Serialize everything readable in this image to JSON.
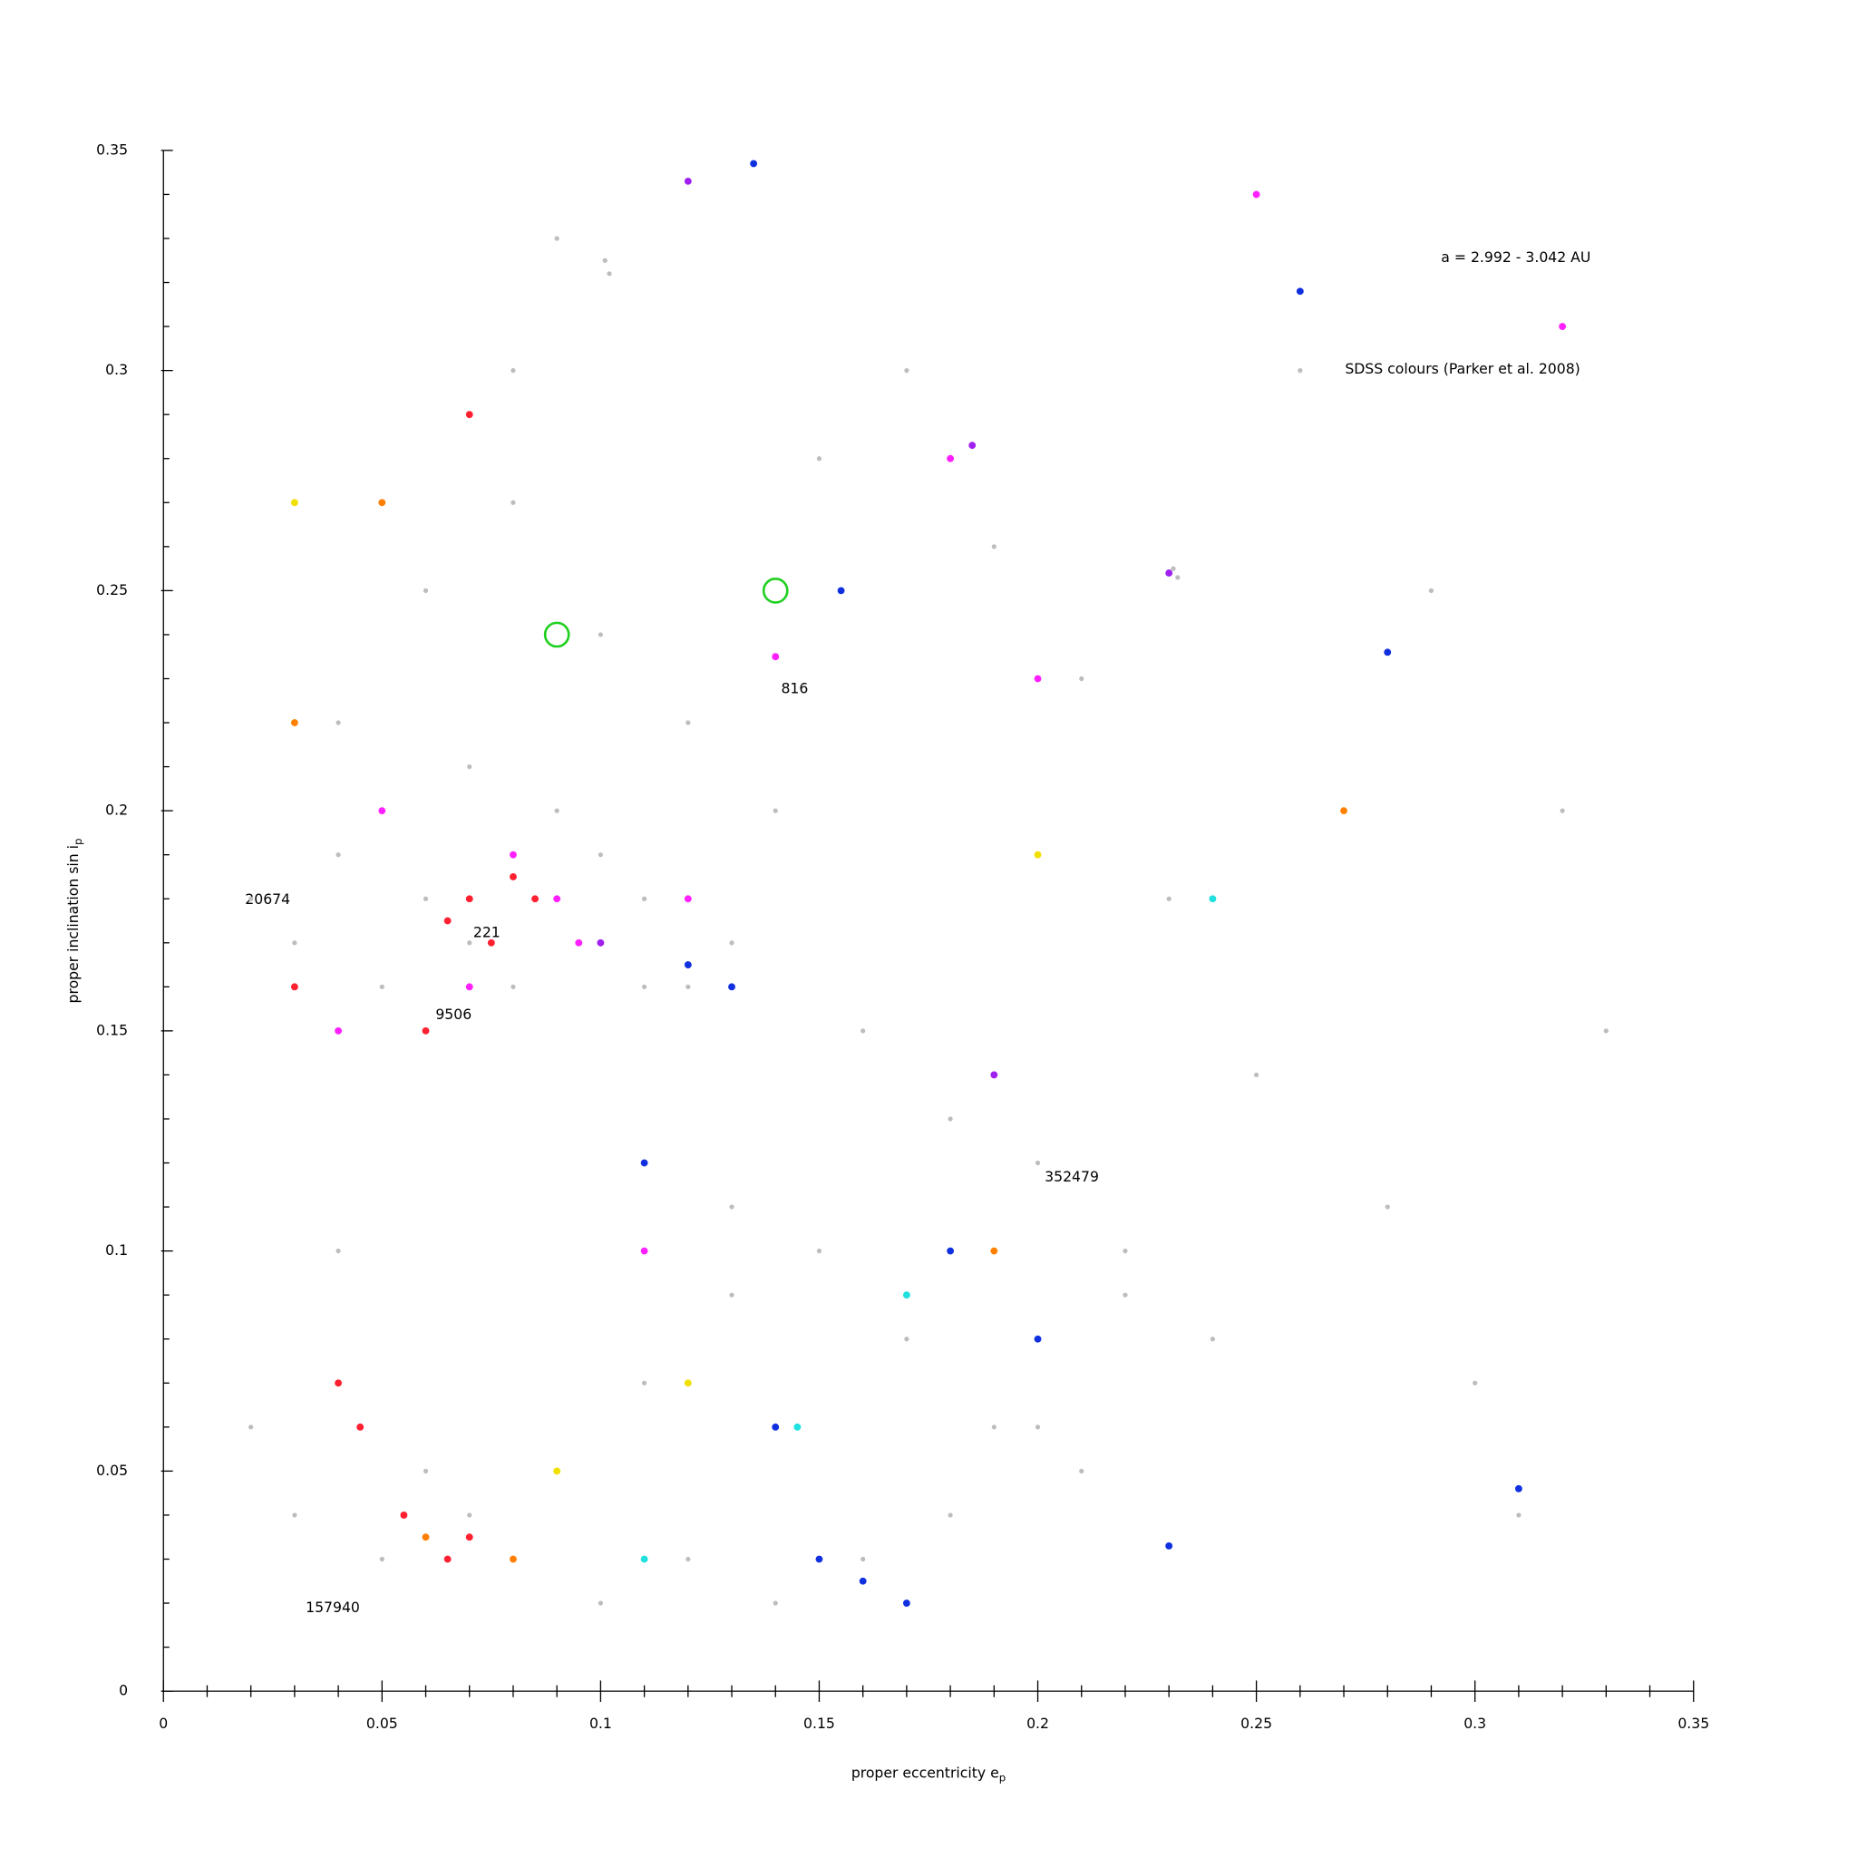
{
  "chart_data": {
    "type": "scatter",
    "x_label": "proper eccentricity e",
    "x_label_sub": "p",
    "y_label": "proper inclination sin i",
    "y_label_sub": "p",
    "annotations": [
      "a = 2.992 - 3.042 AU",
      "SDSS colours (Parker et al. 2008)"
    ],
    "family_labels": [
      "20674",
      "221",
      "9506",
      "816",
      "352479",
      "157940"
    ],
    "xlim": [
      0,
      0.35
    ],
    "ylim": [
      0,
      0.35
    ],
    "xticks": [
      0,
      0.05,
      0.1,
      0.15,
      0.2,
      0.25,
      0.3,
      0.35
    ],
    "yticks": [
      0,
      0.05,
      0.1,
      0.15,
      0.2,
      0.25,
      0.3,
      0.35
    ],
    "xminorticks": [
      0.01,
      0.02,
      0.03,
      0.04,
      0.06,
      0.07,
      0.08,
      0.09,
      0.11,
      0.12,
      0.13,
      0.14,
      0.16,
      0.17,
      0.18,
      0.19,
      0.21,
      0.22,
      0.23,
      0.24,
      0.26,
      0.27,
      0.28,
      0.29,
      0.31,
      0.32,
      0.33,
      0.34
    ],
    "yminorticks": [
      0.01,
      0.02,
      0.03,
      0.04,
      0.06,
      0.07,
      0.08,
      0.09,
      0.11,
      0.12,
      0.13,
      0.14,
      0.16,
      0.17,
      0.18,
      0.19,
      0.21,
      0.22,
      0.23,
      0.24,
      0.26,
      0.27,
      0.28,
      0.29,
      0.31,
      0.32,
      0.33,
      0.34
    ],
    "series": [
      {
        "color": "#bdbdbd",
        "x": [
          0.02,
          0.03,
          0.04,
          0.05,
          0.06,
          0.07,
          0.08,
          0.09,
          0.1,
          0.11,
          0.12,
          0.13,
          0.05,
          0.06,
          0.07,
          0.08,
          0.09,
          0.1,
          0.11,
          0.04,
          0.06,
          0.08,
          0.1,
          0.12,
          0.14,
          0.16,
          0.18,
          0.2,
          0.22,
          0.24,
          0.15,
          0.17,
          0.19,
          0.21,
          0.13,
          0.11,
          0.09,
          0.07,
          0.05,
          0.03,
          0.06,
          0.08,
          0.1,
          0.12,
          0.14,
          0.16,
          0.18,
          0.2,
          0.22,
          0.25,
          0.28,
          0.3,
          0.32,
          0.26,
          0.29,
          0.33,
          0.101,
          0.102,
          0.231,
          0.232,
          0.08,
          0.09,
          0.15,
          0.17,
          0.19,
          0.21,
          0.23,
          0.11,
          0.13,
          0.04,
          0.02,
          0.27,
          0.31
        ],
        "values": [
          0.18,
          0.17,
          0.19,
          0.16,
          0.18,
          0.17,
          0.19,
          0.18,
          0.17,
          0.16,
          0.16,
          0.17,
          0.2,
          0.15,
          0.21,
          0.16,
          0.2,
          0.19,
          0.18,
          0.22,
          0.25,
          0.27,
          0.24,
          0.22,
          0.2,
          0.15,
          0.13,
          0.12,
          0.1,
          0.08,
          0.1,
          0.08,
          0.06,
          0.05,
          0.09,
          0.07,
          0.05,
          0.04,
          0.03,
          0.04,
          0.05,
          0.03,
          0.02,
          0.03,
          0.02,
          0.03,
          0.04,
          0.06,
          0.09,
          0.14,
          0.11,
          0.07,
          0.2,
          0.3,
          0.25,
          0.15,
          0.325,
          0.322,
          0.255,
          0.253,
          0.3,
          0.33,
          0.28,
          0.3,
          0.26,
          0.23,
          0.18,
          0.12,
          0.11,
          0.1,
          0.06,
          0.2,
          0.04
        ]
      },
      {
        "color": "#ff2030",
        "x": [
          0.07,
          0.075,
          0.08,
          0.065,
          0.085,
          0.06,
          0.055,
          0.07,
          0.065,
          0.045,
          0.04,
          0.07,
          0.03
        ],
        "values": [
          0.18,
          0.17,
          0.185,
          0.175,
          0.18,
          0.15,
          0.04,
          0.035,
          0.03,
          0.06,
          0.07,
          0.29,
          0.16
        ]
      },
      {
        "color": "#ff20ff",
        "x": [
          0.08,
          0.09,
          0.07,
          0.095,
          0.14,
          0.12,
          0.05,
          0.25,
          0.18,
          0.2,
          0.32,
          0.11,
          0.04
        ],
        "values": [
          0.19,
          0.18,
          0.16,
          0.17,
          0.235,
          0.18,
          0.2,
          0.34,
          0.28,
          0.23,
          0.31,
          0.1,
          0.15
        ]
      },
      {
        "color": "#1030e0",
        "x": [
          0.12,
          0.13,
          0.15,
          0.16,
          0.17,
          0.18,
          0.14,
          0.11,
          0.2,
          0.23,
          0.26,
          0.155,
          0.135,
          0.28,
          0.31
        ],
        "values": [
          0.165,
          0.16,
          0.03,
          0.025,
          0.02,
          0.1,
          0.06,
          0.12,
          0.08,
          0.033,
          0.318,
          0.25,
          0.347,
          0.236,
          0.046
        ]
      },
      {
        "color": "#ff8000",
        "x": [
          0.06,
          0.05,
          0.08,
          0.19,
          0.03,
          0.27
        ],
        "values": [
          0.035,
          0.27,
          0.03,
          0.1,
          0.22,
          0.2
        ]
      },
      {
        "color": "#f0e000",
        "x": [
          0.09,
          0.03,
          0.12,
          0.2
        ],
        "values": [
          0.05,
          0.27,
          0.07,
          0.19
        ]
      },
      {
        "color": "#20e0e0",
        "x": [
          0.145,
          0.17,
          0.24,
          0.11
        ],
        "values": [
          0.06,
          0.09,
          0.18,
          0.03
        ]
      },
      {
        "color": "#a020f0",
        "x": [
          0.1,
          0.185,
          0.12,
          0.23,
          0.19
        ],
        "values": [
          0.17,
          0.283,
          0.343,
          0.254,
          0.14
        ]
      },
      {
        "color": "#20d020",
        "hollow": true,
        "x": [
          0.09,
          0.14
        ],
        "values": [
          0.24,
          0.25
        ]
      }
    ]
  }
}
